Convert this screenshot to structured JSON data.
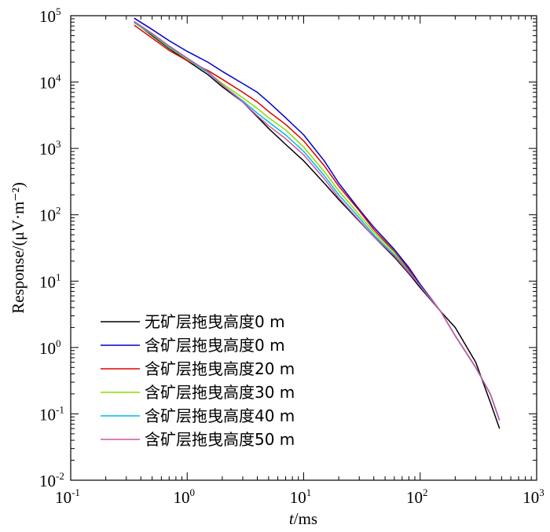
{
  "chart_data": {
    "type": "line",
    "xscale": "log",
    "yscale": "log",
    "xlim": [
      0.1,
      1000
    ],
    "ylim": [
      0.01,
      100000
    ],
    "xlabel": {
      "italic": "t",
      "rest": "/ms"
    },
    "ylabel": "Response/(μV·m⁻²)",
    "x_ticks": [
      {
        "base": "10",
        "exp": "-1"
      },
      {
        "base": "10",
        "exp": "0"
      },
      {
        "base": "10",
        "exp": "1"
      },
      {
        "base": "10",
        "exp": "2"
      },
      {
        "base": "10",
        "exp": "3"
      }
    ],
    "y_ticks": [
      {
        "base": "10",
        "exp": "-2"
      },
      {
        "base": "10",
        "exp": "-1"
      },
      {
        "base": "10",
        "exp": "0"
      },
      {
        "base": "10",
        "exp": "1"
      },
      {
        "base": "10",
        "exp": "2"
      },
      {
        "base": "10",
        "exp": "3"
      },
      {
        "base": "10",
        "exp": "4"
      },
      {
        "base": "10",
        "exp": "5"
      }
    ],
    "legend_position": "bottom-left",
    "series": [
      {
        "name": "无矿层拖曳高度0 m",
        "color": "#000000",
        "points": [
          [
            0.35,
            80000
          ],
          [
            0.5,
            50000
          ],
          [
            0.7,
            32000
          ],
          [
            1,
            21000
          ],
          [
            1.5,
            13000
          ],
          [
            2,
            8500
          ],
          [
            3,
            5000
          ],
          [
            4,
            3000
          ],
          [
            5,
            2000
          ],
          [
            7,
            1150
          ],
          [
            10,
            650
          ],
          [
            15,
            300
          ],
          [
            20,
            170
          ],
          [
            30,
            80
          ],
          [
            40,
            47
          ],
          [
            60,
            23
          ],
          [
            80,
            13
          ],
          [
            100,
            8
          ],
          [
            150,
            3.5
          ],
          [
            200,
            2
          ],
          [
            300,
            0.6
          ],
          [
            400,
            0.15
          ],
          [
            480,
            0.06
          ]
        ]
      },
      {
        "name": "含矿层拖曳高度0 m",
        "color": "#0000cc",
        "points": [
          [
            0.35,
            92000
          ],
          [
            0.5,
            62000
          ],
          [
            0.7,
            42000
          ],
          [
            1,
            29000
          ],
          [
            1.5,
            20000
          ],
          [
            2,
            14500
          ],
          [
            3,
            9500
          ],
          [
            4,
            7000
          ],
          [
            5,
            5000
          ],
          [
            7,
            2900
          ],
          [
            10,
            1600
          ],
          [
            15,
            650
          ],
          [
            20,
            300
          ],
          [
            30,
            120
          ],
          [
            40,
            65
          ],
          [
            60,
            30
          ],
          [
            80,
            16
          ],
          [
            100,
            9
          ],
          [
            150,
            3.5
          ],
          [
            200,
            1.5
          ],
          [
            300,
            0.5
          ],
          [
            400,
            0.2
          ],
          [
            480,
            0.08
          ]
        ]
      },
      {
        "name": "含矿层拖曳高度20 m",
        "color": "#dd0000",
        "points": [
          [
            0.35,
            72000
          ],
          [
            0.5,
            46000
          ],
          [
            0.7,
            30000
          ],
          [
            1,
            21000
          ],
          [
            1.5,
            15000
          ],
          [
            2,
            11000
          ],
          [
            3,
            7000
          ],
          [
            4,
            5000
          ],
          [
            5,
            3600
          ],
          [
            7,
            2300
          ],
          [
            10,
            1300
          ],
          [
            15,
            550
          ],
          [
            20,
            270
          ],
          [
            30,
            115
          ],
          [
            40,
            60
          ],
          [
            60,
            28
          ],
          [
            80,
            15
          ],
          [
            100,
            8.5
          ],
          [
            150,
            3.5
          ],
          [
            200,
            1.5
          ],
          [
            300,
            0.5
          ],
          [
            400,
            0.2
          ],
          [
            480,
            0.08
          ]
        ]
      },
      {
        "name": "含矿层拖曳高度30 m",
        "color": "#88dd00",
        "points": [
          [
            0.35,
            78000
          ],
          [
            0.5,
            52000
          ],
          [
            0.7,
            33000
          ],
          [
            1,
            22000
          ],
          [
            1.5,
            14000
          ],
          [
            2,
            9500
          ],
          [
            3,
            5800
          ],
          [
            4,
            4000
          ],
          [
            5,
            2900
          ],
          [
            7,
            1900
          ],
          [
            10,
            1050
          ],
          [
            15,
            450
          ],
          [
            20,
            230
          ],
          [
            30,
            100
          ],
          [
            40,
            55
          ],
          [
            60,
            27
          ],
          [
            80,
            14
          ],
          [
            100,
            8.5
          ],
          [
            150,
            3.5
          ],
          [
            200,
            1.5
          ],
          [
            300,
            0.5
          ],
          [
            400,
            0.2
          ],
          [
            480,
            0.08
          ]
        ]
      },
      {
        "name": "含矿层拖曳高度40 m",
        "color": "#00bbee",
        "points": [
          [
            0.35,
            80000
          ],
          [
            0.5,
            53000
          ],
          [
            0.7,
            34000
          ],
          [
            1,
            22500
          ],
          [
            1.5,
            14000
          ],
          [
            2,
            9000
          ],
          [
            3,
            5200
          ],
          [
            4,
            3400
          ],
          [
            5,
            2500
          ],
          [
            7,
            1600
          ],
          [
            10,
            900
          ],
          [
            15,
            390
          ],
          [
            20,
            200
          ],
          [
            30,
            90
          ],
          [
            40,
            50
          ],
          [
            60,
            25
          ],
          [
            80,
            14
          ],
          [
            100,
            8.5
          ],
          [
            150,
            3.5
          ],
          [
            200,
            1.5
          ],
          [
            300,
            0.5
          ],
          [
            400,
            0.2
          ],
          [
            480,
            0.08
          ]
        ]
      },
      {
        "name": "含矿层拖曳高度50 m",
        "color": "#cc55aa",
        "points": [
          [
            0.35,
            82000
          ],
          [
            0.5,
            54000
          ],
          [
            0.7,
            35000
          ],
          [
            1,
            23000
          ],
          [
            1.5,
            14500
          ],
          [
            2,
            9000
          ],
          [
            3,
            5000
          ],
          [
            4,
            3100
          ],
          [
            5,
            2200
          ],
          [
            7,
            1400
          ],
          [
            10,
            800
          ],
          [
            15,
            350
          ],
          [
            20,
            180
          ],
          [
            30,
            82
          ],
          [
            40,
            47
          ],
          [
            60,
            24
          ],
          [
            80,
            13.5
          ],
          [
            100,
            8.5
          ],
          [
            150,
            3.5
          ],
          [
            200,
            1.5
          ],
          [
            300,
            0.5
          ],
          [
            400,
            0.2
          ],
          [
            480,
            0.08
          ]
        ]
      }
    ]
  }
}
